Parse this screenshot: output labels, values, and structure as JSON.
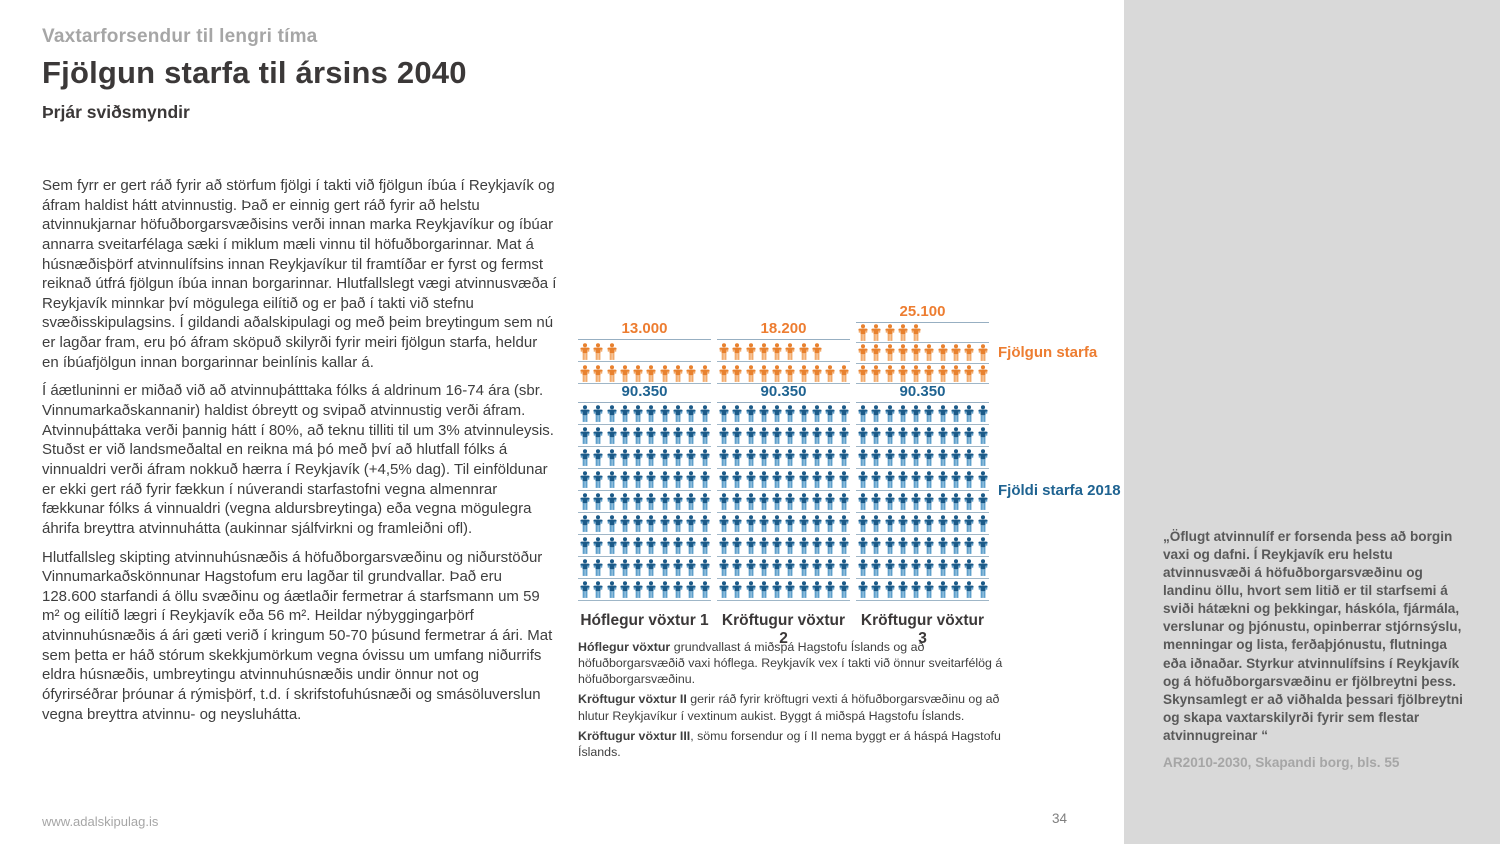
{
  "page": {
    "kicker": "Vaxtarforsendur til lengri tíma",
    "title": "Fjölgun starfa til ársins 2040",
    "subtitle": "Þrjár sviðsmyndir",
    "footer_url": "www.adalskipulag.is",
    "page_number": "34"
  },
  "body": {
    "paragraphs": [
      "Sem fyrr er gert ráð fyrir að störfum fjölgi í takti við fjölgun íbúa í Reykjavík og áfram haldist hátt atvinnustig. Það er einnig gert ráð fyrir að helstu atvinnukjarnar höfuðborgarsvæðisins verði innan marka Reykjavíkur og íbúar annarra sveitarfélaga sæki í miklum mæli vinnu til höfuðborgarinnar. Mat á húsnæðisþörf atvinnulífsins innan Reykjavíkur til framtíðar er fyrst og fermst reiknað útfrá fjölgun íbúa innan borgarinnar. Hlutfallslegt vægi atvinnusvæða í Reykjavík minnkar því mögulega eilítið og er það í takti við stefnu svæðisskipulagsins. Í gildandi aðalskipulagi og með þeim breytingum sem nú er lagðar fram, eru þó áfram sköpuð skilyrði fyrir meiri fjölgun starfa, heldur en íbúafjölgun innan borgarinnar beinlínis kallar á.",
      "Í áætluninni er miðað við að atvinnuþátttaka fólks á aldrinum 16-74 ára (sbr. Vinnumarkaðskannanir) haldist óbreytt og svipað atvinnustig verði áfram. Atvinnuþáttaka verði þannig hátt í 80%, að teknu tilliti til um 3% atvinnuleysis. Stuðst er við landsmeðaltal en reikna má þó með því að hlutfall fólks á vinnualdri verði áfram nokkuð hærra í Reykjavík (+4,5% dag). Til einföldunar er ekki gert ráð fyrir fækkun í núverandi starfastofni vegna almennrar fækkunar fólks á vinnualdri (vegna aldursbreytinga) eða vegna mögulegra áhrifa breyttra atvinnuhátta (aukinnar sjálfvirkni og framleiðni ofl).",
      "Hlutfallsleg skipting atvinnuhúsnæðis á höfuðborgarsvæðinu og niðurstöður Vinnumarkaðskönnunar Hagstofum eru lagðar til grundvallar. Það eru 128.600 starfandi á öllu svæðinu og áætlaðir fermetrar á starfsmann um 59 m² og eilítið lægri í Reykjavík eða 56 m². Heildar nýbyggingarþörf atvinnuhúsnæðis á ári gæti verið í kringum 50-70 þúsund fermetrar á ári. Mat sem þetta er háð stórum skekkjumörkum vegna óvissu um umfang niðurrifs eldra húsnæðis, umbreytingu atvinnuhúsnæðis undir önnur not og ófyrirséðrar þróunar á rýmisþörf, t.d. í skrifstofuhúsnæði og smásöluverslun vegna breyttra atvinnu- og neysluhátta."
    ]
  },
  "chart_notes": [
    {
      "bold": "Hóflegur vöxtur",
      "text": " grundvallast á miðspá Hagstofu Íslands og að höfuðborgarsvæðið vaxi hóflega. Reykjavík vex í takti við önnur sveitarfélög á höfuðborgarsvæðinu."
    },
    {
      "bold": "Kröftugur vöxtur II",
      "text": " gerir ráð fyrir kröftugri vexti á höfuðborgarsvæðinu og að hlutur Reykjavíkur í vextinum aukist. Byggt á miðspá Hagstofu Íslands."
    },
    {
      "bold": "Kröftugur vöxtur III",
      "text": ", sömu forsendur og í II nema byggt er á háspá Hagstofu Íslands."
    }
  ],
  "sidebar": {
    "quote": "„Öflugt atvinnulíf er forsenda þess að borgin vaxi og dafni. Í Reykjavík eru helstu atvinnusvæði á höfuðborgarsvæðinu og landinu öllu, hvort sem litið er til starfsemi á sviði hátækni og þekkingar, háskóla, fjármála, verslunar og þjónustu, opinberrar stjórnsýslu, menningar og lista, ferðaþjónustu, flutninga eða iðnaðar. Styrkur atvinnulífsins í Reykjavík og á höfuðborgarsvæðinu er fjölbreytni þess. Skynsamlegt er að viðhalda þessari fjölbreytni og skapa vaxtarskilyrði fyrir sem flestar atvinnugreinar “",
    "attribution": "AR2010-2030, Skapandi borg, bls. 55",
    "background_color": "#D9D9D9"
  },
  "chart_data": {
    "type": "pictogram",
    "icon_unit": 1000,
    "icons_per_row": 10,
    "series_labels": {
      "growth": "Fjölgun starfa",
      "base": "Fjöldi starfa 2018"
    },
    "scenarios": [
      {
        "label": "Hóflegur vöxtur 1",
        "growth_label": "13.000",
        "growth_value": 13000,
        "growth_icons": 13,
        "base_label": "90.350",
        "base_value": 90350,
        "base_icons": 90
      },
      {
        "label": "Kröftugur vöxtur 2",
        "growth_label": "18.200",
        "growth_value": 18200,
        "growth_icons": 18,
        "base_label": "90.350",
        "base_value": 90350,
        "base_icons": 90
      },
      {
        "label": "Kröftugur vöxtur 3",
        "growth_label": "25.100",
        "growth_value": 25100,
        "growth_icons": 25,
        "base_label": "90.350",
        "base_value": 90350,
        "base_icons": 90
      }
    ],
    "colors": {
      "growth_main": "#E8812E",
      "growth_light": "#F2AA6B",
      "growth_text": "#ED7D31",
      "base_main": "#1B5A88",
      "base_light": "#5D9FCB",
      "base_text": "#1F6391",
      "row_line": "#9FB6C7"
    }
  }
}
